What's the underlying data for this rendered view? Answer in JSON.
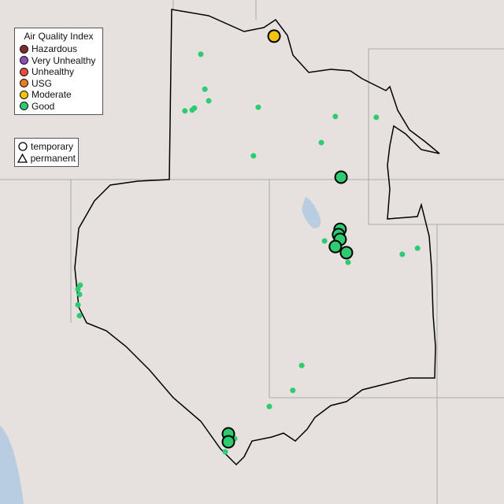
{
  "legend": {
    "title": "Air Quality Index",
    "categories": [
      {
        "label": "Hazardous",
        "color": "#7e2b2b"
      },
      {
        "label": "Very Unhealthy",
        "color": "#8e4fb8"
      },
      {
        "label": "Unhealthy",
        "color": "#e74c3c"
      },
      {
        "label": "USG",
        "color": "#e67e22"
      },
      {
        "label": "Moderate",
        "color": "#f1c40f"
      },
      {
        "label": "Good",
        "color": "#2ecc71"
      }
    ]
  },
  "type_legend": {
    "temporary": "temporary",
    "permanent": "permanent"
  },
  "monitors": {
    "temporary": [
      {
        "lon": -113.85,
        "lat": 45.57,
        "aqi": "Moderate"
      },
      {
        "lon": -111.74,
        "lat": 42.06,
        "aqi": "Good"
      },
      {
        "lon": -111.77,
        "lat": 40.76,
        "aqi": "Good"
      },
      {
        "lon": -111.82,
        "lat": 40.63,
        "aqi": "Good"
      },
      {
        "lon": -111.77,
        "lat": 40.51,
        "aqi": "Good"
      },
      {
        "lon": -111.92,
        "lat": 40.33,
        "aqi": "Good"
      },
      {
        "lon": -111.57,
        "lat": 40.18,
        "aqi": "Good"
      },
      {
        "lon": -115.29,
        "lat": 35.67,
        "aqi": "Good"
      },
      {
        "lon": -115.29,
        "lat": 35.47,
        "aqi": "Good"
      }
    ],
    "permanent": [
      {
        "lon": -116.16,
        "lat": 45.12,
        "aqi": "Good"
      },
      {
        "lon": -116.03,
        "lat": 44.25,
        "aqi": "Good"
      },
      {
        "lon": -115.91,
        "lat": 43.96,
        "aqi": "Good"
      },
      {
        "lon": -116.66,
        "lat": 43.71,
        "aqi": "Good"
      },
      {
        "lon": -116.43,
        "lat": 43.73,
        "aqi": "Good"
      },
      {
        "lon": -116.36,
        "lat": 43.78,
        "aqi": "Good"
      },
      {
        "lon": -114.35,
        "lat": 43.8,
        "aqi": "Good"
      },
      {
        "lon": -111.92,
        "lat": 43.57,
        "aqi": "Good"
      },
      {
        "lon": -110.63,
        "lat": 43.55,
        "aqi": "Good"
      },
      {
        "lon": -112.36,
        "lat": 42.92,
        "aqi": "Good"
      },
      {
        "lon": -114.5,
        "lat": 42.59,
        "aqi": "Good"
      },
      {
        "lon": -112.26,
        "lat": 40.47,
        "aqi": "Good"
      },
      {
        "lon": -111.52,
        "lat": 39.94,
        "aqi": "Good"
      },
      {
        "lon": -109.81,
        "lat": 40.14,
        "aqi": "Good"
      },
      {
        "lon": -109.33,
        "lat": 40.29,
        "aqi": "Good"
      },
      {
        "lon": -119.96,
        "lat": 39.37,
        "aqi": "Good"
      },
      {
        "lon": -120.03,
        "lat": 39.27,
        "aqi": "Good"
      },
      {
        "lon": -119.98,
        "lat": 39.14,
        "aqi": "Good"
      },
      {
        "lon": -120.03,
        "lat": 38.88,
        "aqi": "Good"
      },
      {
        "lon": -119.98,
        "lat": 38.61,
        "aqi": "Good"
      },
      {
        "lon": -112.98,
        "lat": 37.37,
        "aqi": "Good"
      },
      {
        "lon": -113.26,
        "lat": 36.75,
        "aqi": "Good"
      },
      {
        "lon": -114.0,
        "lat": 36.35,
        "aqi": "Good"
      },
      {
        "lon": -115.09,
        "lat": 35.55,
        "aqi": "Good"
      },
      {
        "lon": -115.39,
        "lat": 35.22,
        "aqi": "Good"
      }
    ]
  }
}
